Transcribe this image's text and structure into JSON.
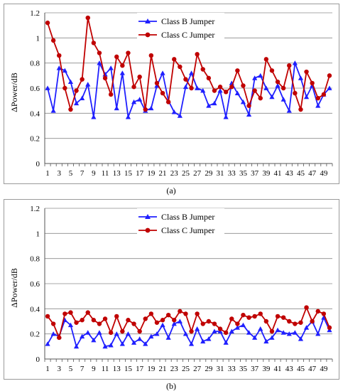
{
  "chart_data": [
    {
      "type": "line",
      "caption": "(a)",
      "ylabel": "ΔPower/dB",
      "xlabel": "",
      "ylim": [
        0,
        1.2
      ],
      "yticks": [
        "0",
        "0.2",
        "0.4",
        "0.6",
        "0.8",
        "1",
        "1.2"
      ],
      "x": [
        1,
        2,
        3,
        4,
        5,
        6,
        7,
        8,
        9,
        10,
        11,
        12,
        13,
        14,
        15,
        16,
        17,
        18,
        19,
        20,
        21,
        22,
        23,
        24,
        25,
        26,
        27,
        28,
        29,
        30,
        31,
        32,
        33,
        34,
        35,
        36,
        37,
        38,
        39,
        40,
        41,
        42,
        43,
        44,
        45,
        46,
        47,
        48,
        49,
        50
      ],
      "xtick_labels": [
        "1",
        "3",
        "5",
        "7",
        "9",
        "11",
        "13",
        "15",
        "17",
        "19",
        "21",
        "23",
        "25",
        "27",
        "29",
        "31",
        "33",
        "35",
        "37",
        "39",
        "41",
        "43",
        "45",
        "47",
        "49"
      ],
      "grid": "horizontal",
      "legend_position": "top-center",
      "series": [
        {
          "name": "Class B Jumper",
          "color": "#1f1fff",
          "marker": "triangle",
          "values": [
            0.6,
            0.42,
            0.76,
            0.74,
            0.65,
            0.48,
            0.52,
            0.63,
            0.37,
            0.8,
            0.71,
            0.76,
            0.44,
            0.72,
            0.37,
            0.49,
            0.51,
            0.42,
            0.44,
            0.62,
            0.72,
            0.5,
            0.41,
            0.38,
            0.61,
            0.72,
            0.6,
            0.58,
            0.46,
            0.48,
            0.58,
            0.37,
            0.64,
            0.56,
            0.49,
            0.39,
            0.68,
            0.7,
            0.6,
            0.53,
            0.62,
            0.51,
            0.42,
            0.8,
            0.68,
            0.53,
            0.62,
            0.46,
            0.55,
            0.6
          ]
        },
        {
          "name": "Class C Jumper",
          "color": "#c00000",
          "marker": "circle",
          "values": [
            1.12,
            0.98,
            0.86,
            0.6,
            0.43,
            0.58,
            0.67,
            1.16,
            0.96,
            0.88,
            0.68,
            0.55,
            0.85,
            0.78,
            0.88,
            0.61,
            0.69,
            0.43,
            0.86,
            0.64,
            0.56,
            0.49,
            0.83,
            0.77,
            0.67,
            0.6,
            0.87,
            0.75,
            0.68,
            0.58,
            0.61,
            0.57,
            0.61,
            0.74,
            0.62,
            0.46,
            0.58,
            0.52,
            0.83,
            0.74,
            0.65,
            0.6,
            0.78,
            0.56,
            0.43,
            0.73,
            0.64,
            0.52,
            0.55,
            0.7
          ]
        }
      ]
    },
    {
      "type": "line",
      "caption": "(b)",
      "ylabel": "ΔPower/dB",
      "xlabel": "",
      "ylim": [
        0,
        1.2
      ],
      "yticks": [
        "0",
        "0.2",
        "0.4",
        "0.6",
        "0.8",
        "1",
        "1.2"
      ],
      "x": [
        1,
        2,
        3,
        4,
        5,
        6,
        7,
        8,
        9,
        10,
        11,
        12,
        13,
        14,
        15,
        16,
        17,
        18,
        19,
        20,
        21,
        22,
        23,
        24,
        25,
        26,
        27,
        28,
        29,
        30,
        31,
        32,
        33,
        34,
        35,
        36,
        37,
        38,
        39,
        40,
        41,
        42,
        43,
        44,
        45,
        46,
        47,
        48,
        49,
        50
      ],
      "xtick_labels": [
        "1",
        "3",
        "5",
        "7",
        "9",
        "11",
        "13",
        "15",
        "17",
        "19",
        "21",
        "23",
        "25",
        "27",
        "29",
        "31",
        "33",
        "35",
        "37",
        "39",
        "41",
        "43",
        "45",
        "47",
        "49"
      ],
      "grid": "horizontal",
      "legend_position": "top-center",
      "series": [
        {
          "name": "Class B Jumper",
          "color": "#1f1fff",
          "marker": "triangle",
          "values": [
            0.12,
            0.2,
            0.18,
            0.31,
            0.27,
            0.1,
            0.18,
            0.21,
            0.15,
            0.21,
            0.1,
            0.11,
            0.2,
            0.12,
            0.2,
            0.13,
            0.16,
            0.12,
            0.18,
            0.2,
            0.27,
            0.17,
            0.28,
            0.3,
            0.2,
            0.12,
            0.24,
            0.14,
            0.16,
            0.22,
            0.22,
            0.13,
            0.22,
            0.25,
            0.27,
            0.21,
            0.17,
            0.24,
            0.14,
            0.17,
            0.23,
            0.21,
            0.2,
            0.21,
            0.16,
            0.25,
            0.3,
            0.2,
            0.33,
            0.23
          ]
        },
        {
          "name": "Class C Jumper",
          "color": "#c00000",
          "marker": "circle",
          "values": [
            0.34,
            0.28,
            0.17,
            0.36,
            0.37,
            0.29,
            0.31,
            0.37,
            0.31,
            0.28,
            0.32,
            0.21,
            0.34,
            0.22,
            0.31,
            0.28,
            0.22,
            0.32,
            0.36,
            0.29,
            0.31,
            0.35,
            0.31,
            0.38,
            0.36,
            0.22,
            0.36,
            0.28,
            0.3,
            0.28,
            0.24,
            0.21,
            0.32,
            0.28,
            0.35,
            0.33,
            0.34,
            0.36,
            0.3,
            0.22,
            0.34,
            0.33,
            0.3,
            0.28,
            0.29,
            0.41,
            0.3,
            0.38,
            0.36,
            0.25
          ]
        }
      ]
    }
  ]
}
